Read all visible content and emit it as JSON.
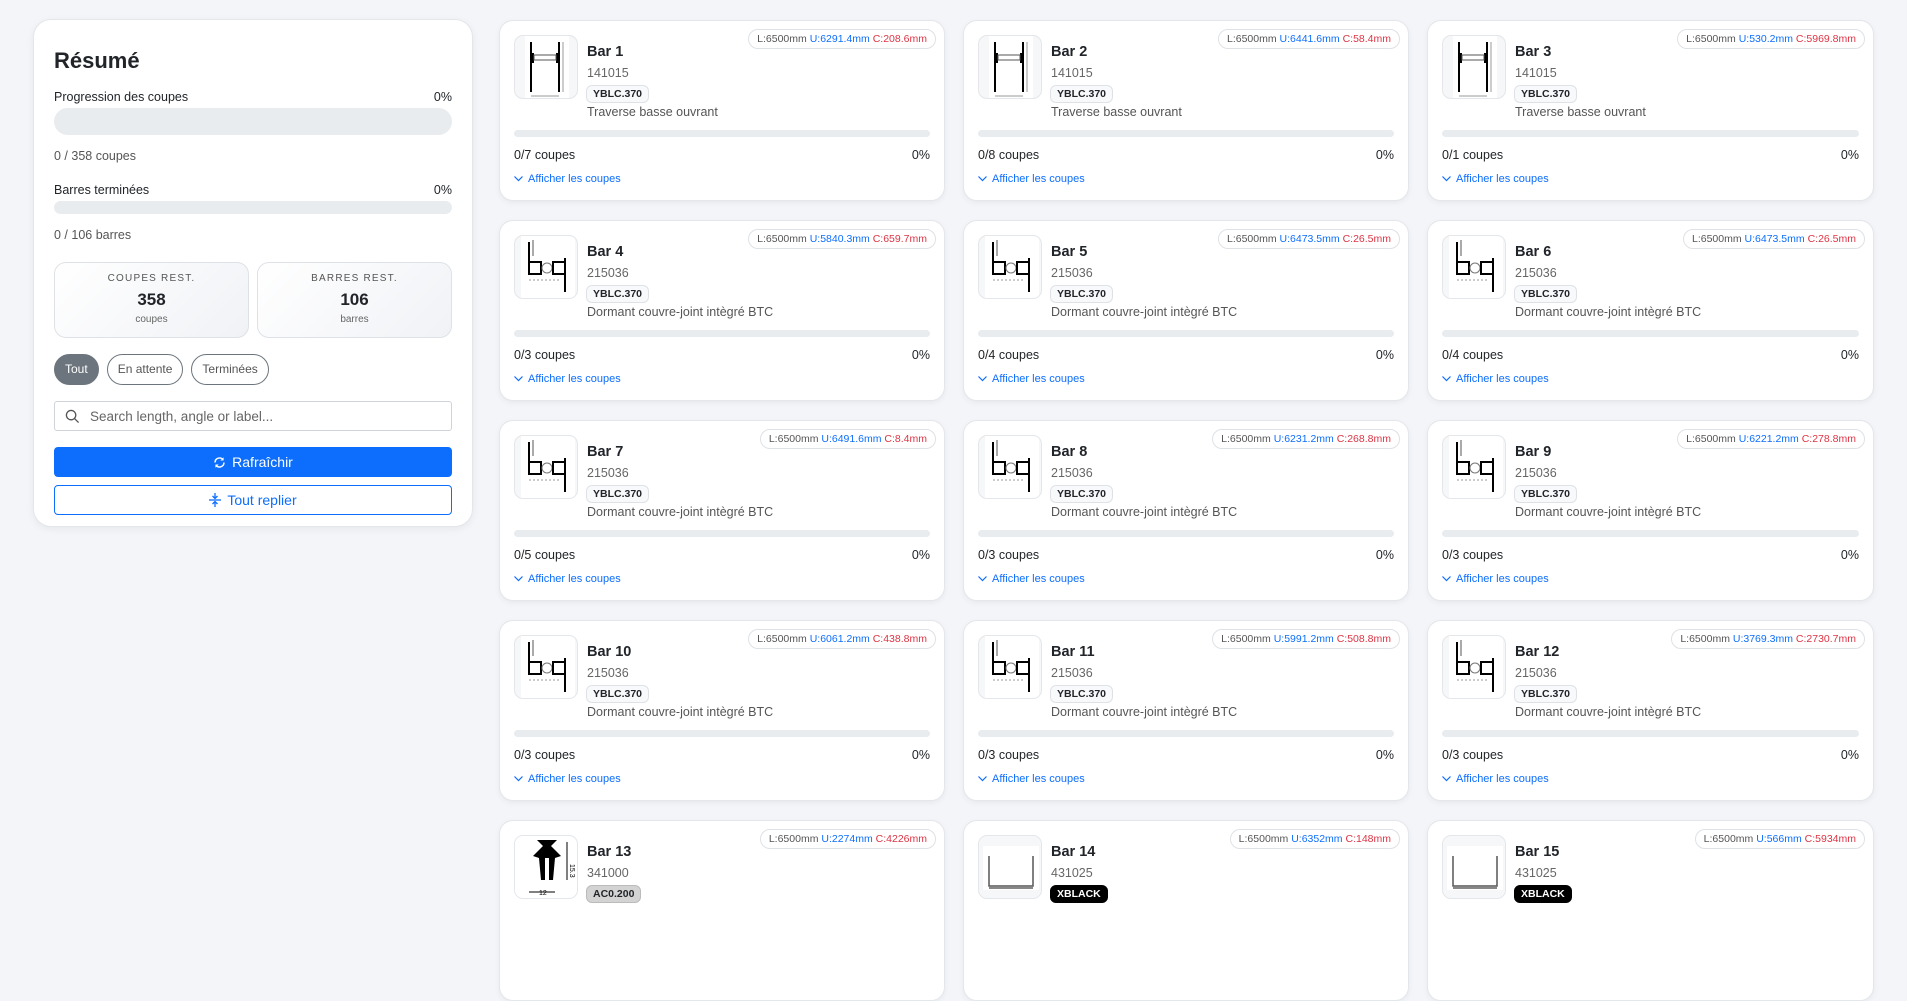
{
  "summary": {
    "title": "Résumé",
    "cuts_progress_label": "Progression des coupes",
    "cuts_progress_pct": "0%",
    "cuts_progress_value": 0,
    "cuts_count": "0 / 358 coupes",
    "bars_done_label": "Barres terminées",
    "bars_done_pct": "0%",
    "bars_done_value": 0,
    "bars_count": "0 / 106 barres",
    "stats": [
      {
        "key": "COUPES REST.",
        "value": "358",
        "unit": "coupes"
      },
      {
        "key": "BARRES REST.",
        "value": "106",
        "unit": "barres"
      }
    ],
    "filters": [
      {
        "label": "Tout",
        "active": true
      },
      {
        "label": "En attente",
        "active": false
      },
      {
        "label": "Terminées",
        "active": false
      }
    ],
    "search_placeholder": "Search length, angle or label...",
    "search_icon": "search-icon",
    "refresh_label": "Rafraîchir",
    "refresh_icon": "refresh-icon",
    "collapse_label": "Tout replier",
    "collapse_icon": "collapse-icon"
  },
  "colors": {
    "accent": "#0d6efd",
    "used": "#0d6efd",
    "chute": "#dc3545"
  },
  "show_cuts_label": "Afficher les coupes",
  "bars": [
    {
      "title": "Bar 1",
      "code": "141015",
      "badge": "YBLC.370",
      "badge_style": "light",
      "desc": "Traverse basse ouvrant",
      "L": "L:6500mm",
      "U": "U:6291.4mm",
      "C": "C:208.6mm",
      "cuts": "0/7 coupes",
      "pct": "0%",
      "profile": "h"
    },
    {
      "title": "Bar 2",
      "code": "141015",
      "badge": "YBLC.370",
      "badge_style": "light",
      "desc": "Traverse basse ouvrant",
      "L": "L:6500mm",
      "U": "U:6441.6mm",
      "C": "C:58.4mm",
      "cuts": "0/8 coupes",
      "pct": "0%",
      "profile": "h"
    },
    {
      "title": "Bar 3",
      "code": "141015",
      "badge": "YBLC.370",
      "badge_style": "light",
      "desc": "Traverse basse ouvrant",
      "L": "L:6500mm",
      "U": "U:530.2mm",
      "C": "C:5969.8mm",
      "cuts": "0/1 coupes",
      "pct": "0%",
      "profile": "h"
    },
    {
      "title": "Bar 4",
      "code": "215036",
      "badge": "YBLC.370",
      "badge_style": "light",
      "desc": "Dormant couvre-joint intègré BTC",
      "L": "L:6500mm",
      "U": "U:5840.3mm",
      "C": "C:659.7mm",
      "cuts": "0/3 coupes",
      "pct": "0%",
      "profile": "l"
    },
    {
      "title": "Bar 5",
      "code": "215036",
      "badge": "YBLC.370",
      "badge_style": "light",
      "desc": "Dormant couvre-joint intègré BTC",
      "L": "L:6500mm",
      "U": "U:6473.5mm",
      "C": "C:26.5mm",
      "cuts": "0/4 coupes",
      "pct": "0%",
      "profile": "l"
    },
    {
      "title": "Bar 6",
      "code": "215036",
      "badge": "YBLC.370",
      "badge_style": "light",
      "desc": "Dormant couvre-joint intègré BTC",
      "L": "L:6500mm",
      "U": "U:6473.5mm",
      "C": "C:26.5mm",
      "cuts": "0/4 coupes",
      "pct": "0%",
      "profile": "l"
    },
    {
      "title": "Bar 7",
      "code": "215036",
      "badge": "YBLC.370",
      "badge_style": "light",
      "desc": "Dormant couvre-joint intègré BTC",
      "L": "L:6500mm",
      "U": "U:6491.6mm",
      "C": "C:8.4mm",
      "cuts": "0/5 coupes",
      "pct": "0%",
      "profile": "l"
    },
    {
      "title": "Bar 8",
      "code": "215036",
      "badge": "YBLC.370",
      "badge_style": "light",
      "desc": "Dormant couvre-joint intègré BTC",
      "L": "L:6500mm",
      "U": "U:6231.2mm",
      "C": "C:268.8mm",
      "cuts": "0/3 coupes",
      "pct": "0%",
      "profile": "l"
    },
    {
      "title": "Bar 9",
      "code": "215036",
      "badge": "YBLC.370",
      "badge_style": "light",
      "desc": "Dormant couvre-joint intègré BTC",
      "L": "L:6500mm",
      "U": "U:6221.2mm",
      "C": "C:278.8mm",
      "cuts": "0/3 coupes",
      "pct": "0%",
      "profile": "l"
    },
    {
      "title": "Bar 10",
      "code": "215036",
      "badge": "YBLC.370",
      "badge_style": "light",
      "desc": "Dormant couvre-joint intègré BTC",
      "L": "L:6500mm",
      "U": "U:6061.2mm",
      "C": "C:438.8mm",
      "cuts": "0/3 coupes",
      "pct": "0%",
      "profile": "l"
    },
    {
      "title": "Bar 11",
      "code": "215036",
      "badge": "YBLC.370",
      "badge_style": "light",
      "desc": "Dormant couvre-joint intègré BTC",
      "L": "L:6500mm",
      "U": "U:5991.2mm",
      "C": "C:508.8mm",
      "cuts": "0/3 coupes",
      "pct": "0%",
      "profile": "l"
    },
    {
      "title": "Bar 12",
      "code": "215036",
      "badge": "YBLC.370",
      "badge_style": "light",
      "desc": "Dormant couvre-joint intègré BTC",
      "L": "L:6500mm",
      "U": "U:3769.3mm",
      "C": "C:2730.7mm",
      "cuts": "0/3 coupes",
      "pct": "0%",
      "profile": "l"
    },
    {
      "title": "Bar 13",
      "code": "341000",
      "badge": "AC0.200",
      "badge_style": "gray",
      "desc": "",
      "L": "L:6500mm",
      "U": "U:2274mm",
      "C": "C:4226mm",
      "cuts": "",
      "pct": "",
      "profile": "t"
    },
    {
      "title": "Bar 14",
      "code": "431025",
      "badge": "XBLACK",
      "badge_style": "black",
      "desc": "",
      "L": "L:6500mm",
      "U": "U:6352mm",
      "C": "C:148mm",
      "cuts": "",
      "pct": "",
      "profile": "u"
    },
    {
      "title": "Bar 15",
      "code": "431025",
      "badge": "XBLACK",
      "badge_style": "black",
      "desc": "",
      "L": "L:6500mm",
      "U": "U:566mm",
      "C": "C:5934mm",
      "cuts": "",
      "pct": "",
      "profile": "u"
    }
  ]
}
